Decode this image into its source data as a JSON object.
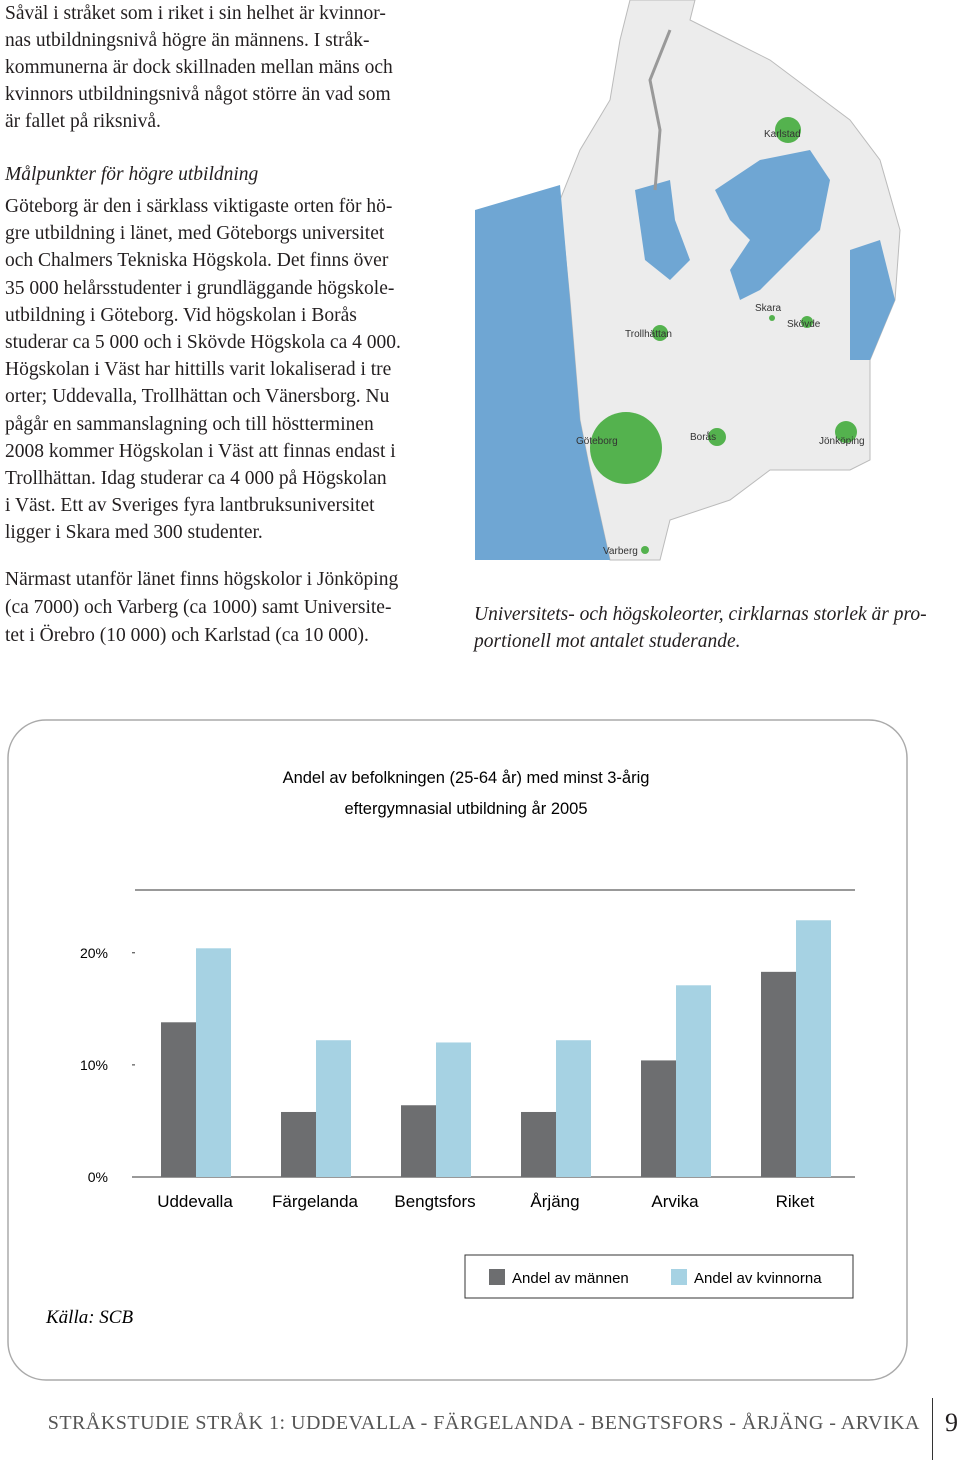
{
  "body": {
    "paragraph_1": [
      "Såväl i stråket som i riket i sin helhet är kvinnor-",
      "nas utbildningsnivå högre än männens. I stråk-",
      "kommunerna är dock skillnaden mellan mäns och",
      "kvinnors utbildningsnivå något större än vad som",
      "är fallet på riksnivå."
    ],
    "heading": "Målpunkter för högre utbildning",
    "paragraph_2": [
      "Göteborg är den i särklass viktigaste orten för hö-",
      "gre utbildning i länet, med Göteborgs universitet",
      "och Chalmers Tekniska Högskola. Det finns över",
      "35 000 helårsstudenter i grundläggande högskole-",
      "utbildning i Göteborg. Vid högskolan i Borås",
      "studerar ca 5 000 och i Skövde Högskola ca 4 000.",
      "Högskolan i Väst har hittills varit lokaliserad i tre",
      "orter; Uddevalla, Trollhättan och Vänersborg. Nu",
      "pågår en sammanslagning och till höstterminen",
      "2008 kommer Högskolan i Väst att finnas endast i",
      "Trollhättan. Idag studerar ca 4 000 på Högskolan",
      "i Väst. Ett av Sveriges fyra lantbruksuniversitet",
      "ligger i Skara med 300 studenter."
    ],
    "paragraph_3": [
      "Närmast utanför länet finns högskolor i Jönköping",
      "(ca 7000) och Varberg (ca 1000) samt Universite-",
      "tet i Örebro (10 000) och Karlstad (ca 10 000)."
    ]
  },
  "map": {
    "places": [
      "Karlstad",
      "Skara",
      "Skövde",
      "Trollhättan",
      "Göteborg",
      "Borås",
      "Jönköping",
      "Varberg"
    ],
    "caption": [
      "Universitets- och högskoleorter, cirklarnas storlek är pro-",
      "portionell mot antalet studerande."
    ]
  },
  "chart_data": {
    "type": "bar",
    "title": [
      "Andel av befolkningen (25-64 år) med minst 3-årig",
      "eftergymnasial utbildning år 2005"
    ],
    "categories": [
      "Uddevalla",
      "Färgelanda",
      "Bengtsfors",
      "Årjäng",
      "Arvika",
      "Riket"
    ],
    "series": [
      {
        "name": "Andel av männen",
        "color": "#6d6e70",
        "values": [
          13.8,
          5.8,
          6.4,
          5.8,
          10.4,
          18.3
        ]
      },
      {
        "name": "Andel av kvinnorna",
        "color": "#a6d2e3",
        "values": [
          20.4,
          12.2,
          12.0,
          12.2,
          17.1,
          22.9
        ]
      }
    ],
    "ylim": [
      0,
      25.6
    ],
    "yticks": [
      {
        "value": 0,
        "label": "0%"
      },
      {
        "value": 10,
        "label": "10%"
      },
      {
        "value": 20,
        "label": "20%"
      }
    ],
    "grid": false,
    "source": "Källa: SCB"
  },
  "footer": {
    "text": "STRÅKSTUDIE STRÅK 1: UDDEVALLA - FÄRGELANDA - BENGTSFORS - ÅRJÄNG - ARVIKA",
    "page": "9"
  }
}
